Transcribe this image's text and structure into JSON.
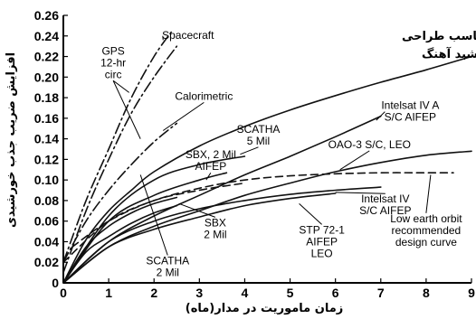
{
  "chart_data": {
    "type": "line",
    "title": ".منحنی مناسب طراحی برای مدار خورشید آهنگ",
    "title_lines": [
      ".منحنی مناسب طراحی",
      "برای مدار خورشید آهنگ"
    ],
    "xlabel": "زمان ماموریت در مدار(ماه)",
    "ylabel": "افزایش ضریب جذب خورشیدی",
    "xlim": [
      0,
      9
    ],
    "ylim": [
      0,
      0.26
    ],
    "x_ticks": [
      "0",
      "1",
      "2",
      "3",
      "4",
      "5",
      "6",
      "7",
      "8",
      "9"
    ],
    "y_ticks": [
      "0",
      "0.02",
      "0.04",
      "0.06",
      "0.08",
      "0.10",
      "0.12",
      "0.14",
      "0.16",
      "0.18",
      "0.20",
      "0.22",
      "0.24",
      "0.26"
    ],
    "grid": false,
    "series": [
      {
        "name": "Spacecraft",
        "style": "dashdot",
        "color": "#111111",
        "points": [
          [
            0,
            0.02
          ],
          [
            0.5,
            0.08
          ],
          [
            1,
            0.13
          ],
          [
            1.5,
            0.18
          ],
          [
            2,
            0.22
          ],
          [
            2.4,
            0.245
          ]
        ]
      },
      {
        "name": "GPS 12-hr circ",
        "style": "dashdot",
        "color": "#111111",
        "points": [
          [
            0,
            0.01
          ],
          [
            0.5,
            0.07
          ],
          [
            1,
            0.12
          ],
          [
            1.5,
            0.165
          ],
          [
            2,
            0.2
          ],
          [
            2.5,
            0.23
          ]
        ]
      },
      {
        "name": "Calorimetric",
        "style": "dashdot",
        "color": "#111111",
        "points": [
          [
            0,
            0.02
          ],
          [
            0.5,
            0.06
          ],
          [
            1,
            0.09
          ],
          [
            1.5,
            0.115
          ],
          [
            2,
            0.137
          ],
          [
            2.5,
            0.155
          ]
        ]
      },
      {
        "name": "",
        "style": "solid",
        "color": "#cc2222",
        "points": [
          [
            0,
            0
          ],
          [
            0.5,
            0.042
          ],
          [
            1,
            0.07
          ],
          [
            1.5,
            0.09
          ],
          [
            2,
            0.108
          ],
          [
            3,
            0.133
          ],
          [
            4,
            0.152
          ],
          [
            5,
            0.168
          ],
          [
            6,
            0.182
          ],
          [
            7,
            0.195
          ],
          [
            8,
            0.207
          ],
          [
            9,
            0.22
          ]
        ]
      },
      {
        "name": "SCATHA 5 Mil",
        "style": "solid",
        "color": "#111111",
        "points": [
          [
            0,
            0
          ],
          [
            1,
            0.065
          ],
          [
            2,
            0.1
          ],
          [
            3,
            0.115
          ],
          [
            4,
            0.123
          ]
        ]
      },
      {
        "name": "SBX, 2 Mil AIFEP",
        "style": "solid",
        "color": "#111111",
        "points": [
          [
            0,
            0
          ],
          [
            1,
            0.06
          ],
          [
            2,
            0.085
          ],
          [
            3,
            0.1
          ],
          [
            3.6,
            0.107
          ]
        ]
      },
      {
        "name": "Intelsat IV A S/C AIFEP",
        "style": "solid",
        "color": "#111111",
        "points": [
          [
            0,
            0
          ],
          [
            1,
            0.04
          ],
          [
            2,
            0.065
          ],
          [
            3,
            0.085
          ],
          [
            4,
            0.105
          ],
          [
            5,
            0.123
          ],
          [
            6,
            0.142
          ],
          [
            7,
            0.162
          ]
        ]
      },
      {
        "name": "OAO-3 S/C, LEO",
        "style": "solid",
        "color": "#111111",
        "points": [
          [
            0,
            0
          ],
          [
            1,
            0.035
          ],
          [
            2,
            0.055
          ],
          [
            3,
            0.07
          ],
          [
            4,
            0.085
          ],
          [
            5,
            0.097
          ],
          [
            6,
            0.108
          ],
          [
            7,
            0.117
          ],
          [
            8,
            0.124
          ],
          [
            9,
            0.128
          ]
        ]
      },
      {
        "name": "Intelsat IV S/C AIFEP",
        "style": "solid",
        "color": "#111111",
        "points": [
          [
            0,
            0
          ],
          [
            1,
            0.04
          ],
          [
            2,
            0.06
          ],
          [
            3,
            0.072
          ],
          [
            4,
            0.08
          ],
          [
            5,
            0.086
          ],
          [
            6,
            0.09
          ],
          [
            7,
            0.093
          ]
        ]
      },
      {
        "name": "STP 72-1 AIFEP LEO",
        "style": "solid",
        "color": "#111111",
        "points": [
          [
            0,
            0
          ],
          [
            1,
            0.035
          ],
          [
            2,
            0.052
          ],
          [
            3,
            0.064
          ],
          [
            4,
            0.075
          ],
          [
            5,
            0.082
          ],
          [
            6,
            0.087
          ]
        ]
      },
      {
        "name": "SBX 2 Mil",
        "style": "solid",
        "color": "#111111",
        "points": [
          [
            0,
            0
          ],
          [
            0.5,
            0.03
          ],
          [
            1,
            0.045
          ],
          [
            1.5,
            0.058
          ],
          [
            2,
            0.068
          ],
          [
            2.5,
            0.075
          ]
        ]
      },
      {
        "name": "SCATHA 2 Mil",
        "style": "solid",
        "color": "#111111",
        "points": [
          [
            0,
            0
          ],
          [
            0.5,
            0.035
          ],
          [
            1,
            0.055
          ],
          [
            1.5,
            0.068
          ],
          [
            2,
            0.077
          ],
          [
            2.5,
            0.083
          ]
        ]
      },
      {
        "name": "Low earth orbit recommended design curve",
        "style": "dashed",
        "color": "#111111",
        "points": [
          [
            0,
            0.02
          ],
          [
            1,
            0.06
          ],
          [
            2,
            0.08
          ],
          [
            3,
            0.092
          ],
          [
            4,
            0.1
          ],
          [
            5,
            0.104
          ],
          [
            6,
            0.106
          ],
          [
            7,
            0.107
          ],
          [
            8,
            0.107
          ],
          [
            8.6,
            0.107
          ]
        ]
      },
      {
        "name": "",
        "style": "dashed",
        "color": "#111111",
        "points": [
          [
            0.2,
            0.035
          ],
          [
            1,
            0.06
          ],
          [
            2,
            0.08
          ],
          [
            3,
            0.09
          ],
          [
            4,
            0.097
          ]
        ]
      }
    ],
    "annotations": [
      {
        "lines": [
          "GPS",
          "12-hr",
          "circ"
        ],
        "label_x": 1.1,
        "label_y": 0.222,
        "leaders": [
          [
            1.45,
            0.185
          ],
          [
            1.7,
            0.14
          ]
        ]
      },
      {
        "lines": [
          "Spacecraft"
        ],
        "label_x": 2.75,
        "label_y": 0.237,
        "leaders": [
          [
            2.2,
            0.236
          ]
        ]
      },
      {
        "lines": [
          "Calorimetric"
        ],
        "label_x": 3.1,
        "label_y": 0.178,
        "leaders": [
          [
            2.2,
            0.148
          ]
        ]
      },
      {
        "lines": [
          "SCATHA",
          "5 Mil"
        ],
        "label_x": 4.3,
        "label_y": 0.146,
        "leaders": [
          [
            3.9,
            0.125
          ]
        ]
      },
      {
        "lines": [
          "SBX, 2 Mil",
          "AIFEP"
        ],
        "label_x": 3.25,
        "label_y": 0.121,
        "leaders": [
          [
            3.15,
            0.1
          ]
        ]
      },
      {
        "lines": [
          "Intelsat IV A",
          "S/C AIFEP"
        ],
        "label_x": 7.65,
        "label_y": 0.169,
        "leaders": [
          [
            6.9,
            0.158
          ]
        ]
      },
      {
        "lines": [
          "OAO-3 S/C, LEO"
        ],
        "label_x": 6.75,
        "label_y": 0.131,
        "leaders": [
          [
            6.1,
            0.11
          ]
        ]
      },
      {
        "lines": [
          "Intelsat IV",
          "S/C AIFEP"
        ],
        "label_x": 7.1,
        "label_y": 0.078,
        "leaders": [
          [
            6.0,
            0.088
          ]
        ]
      },
      {
        "lines": [
          "STP 72-1",
          "AIFEP",
          "LEO"
        ],
        "label_x": 5.7,
        "label_y": 0.048,
        "leaders": [
          [
            5.2,
            0.077
          ]
        ]
      },
      {
        "lines": [
          "SBX",
          "2 Mil"
        ],
        "label_x": 3.35,
        "label_y": 0.055,
        "leaders": [
          [
            2.55,
            0.077
          ]
        ]
      },
      {
        "lines": [
          "SCATHA",
          "2 Mil"
        ],
        "label_x": 2.3,
        "label_y": 0.018,
        "leaders": [
          [
            1.7,
            0.105
          ]
        ]
      },
      {
        "lines": [
          "Low earth orbit",
          "recommended",
          "design curve"
        ],
        "label_x": 8.0,
        "label_y": 0.059,
        "leaders": [
          [
            8.1,
            0.105
          ]
        ]
      }
    ],
    "red_color": "#cc2222"
  }
}
